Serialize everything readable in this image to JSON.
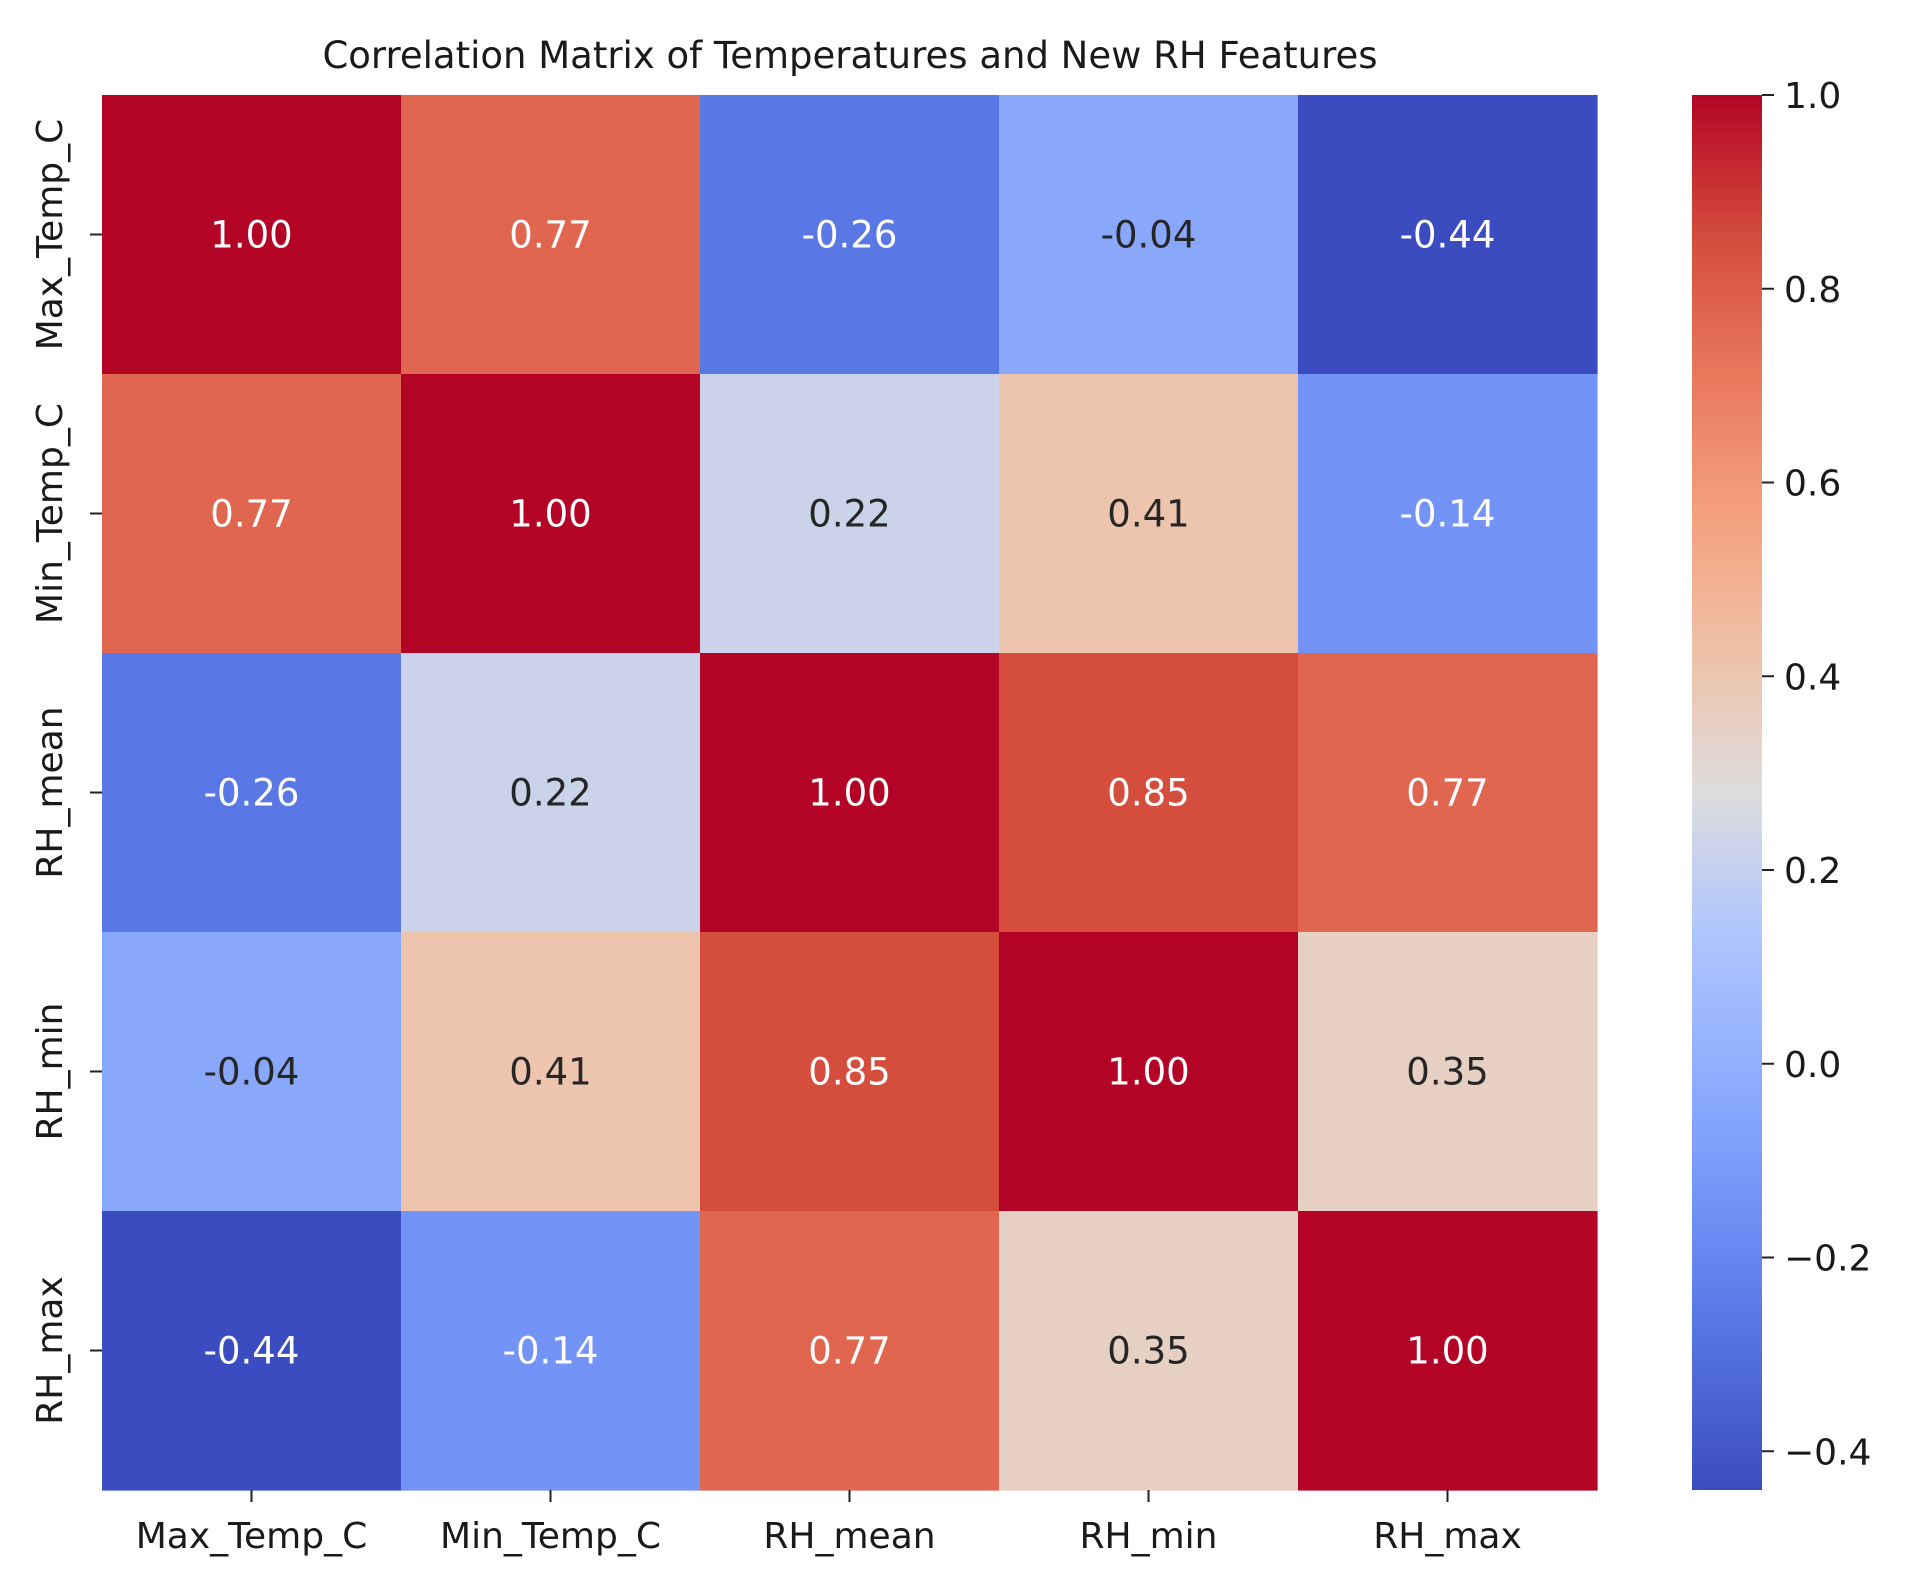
{
  "chart_data": {
    "type": "heatmap",
    "title": "Correlation Matrix of Temperatures and New RH Features",
    "rows": [
      "Max_Temp_C",
      "Min_Temp_C",
      "RH_mean",
      "RH_min",
      "RH_max"
    ],
    "columns": [
      "Max_Temp_C",
      "Min_Temp_C",
      "RH_mean",
      "RH_min",
      "RH_max"
    ],
    "values": [
      [
        1.0,
        0.77,
        -0.26,
        -0.04,
        -0.44
      ],
      [
        0.77,
        1.0,
        0.22,
        0.41,
        -0.14
      ],
      [
        -0.26,
        0.22,
        1.0,
        0.85,
        0.77
      ],
      [
        -0.04,
        0.41,
        0.85,
        1.0,
        0.35
      ],
      [
        -0.44,
        -0.14,
        0.77,
        0.35,
        1.0
      ]
    ],
    "cell_labels": [
      [
        "1.00",
        "0.77",
        "-0.26",
        "-0.04",
        "-0.44"
      ],
      [
        "0.77",
        "1.00",
        "0.22",
        "0.41",
        "-0.14"
      ],
      [
        "-0.26",
        "0.22",
        "1.00",
        "0.85",
        "0.77"
      ],
      [
        "-0.04",
        "0.41",
        "0.85",
        "1.00",
        "0.35"
      ],
      [
        "-0.44",
        "-0.14",
        "0.77",
        "0.35",
        "1.00"
      ]
    ],
    "colormap": "coolwarm",
    "colorbar": {
      "vmin": -0.44,
      "vmax": 1.0,
      "ticks": [
        1.0,
        0.8,
        0.6,
        0.4,
        0.2,
        0.0,
        -0.2,
        -0.4
      ],
      "tick_labels": [
        "1.0",
        "0.8",
        "0.6",
        "0.4",
        "0.2",
        "0.0",
        "−0.2",
        "−0.4"
      ]
    }
  }
}
